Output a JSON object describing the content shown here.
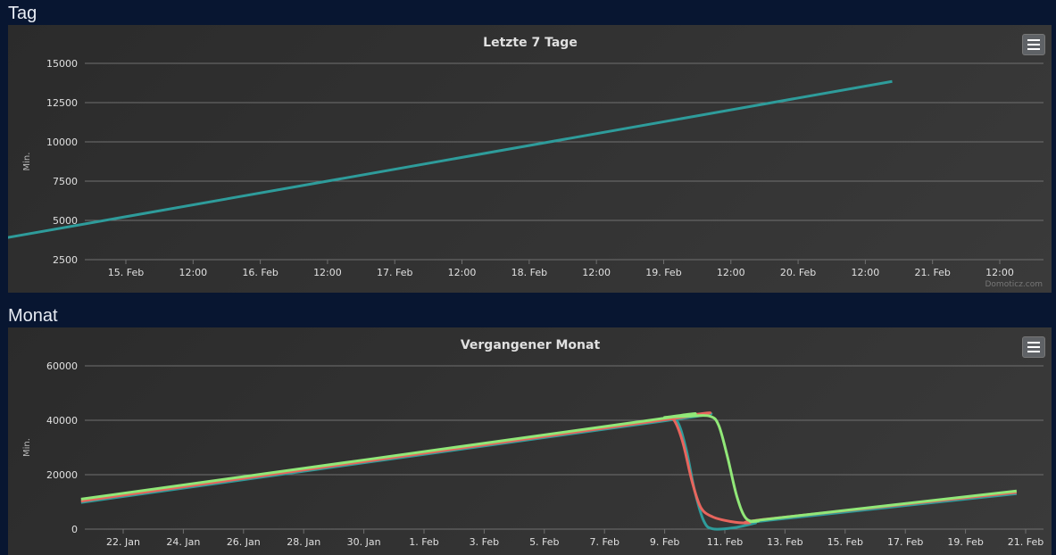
{
  "sections": {
    "day_title": "Tag",
    "month_title": "Monat"
  },
  "credit": "Domoticz.com",
  "colors": {
    "teal": "#2e9c9b",
    "red": "#e8655d",
    "green": "#91e878",
    "grid": "#707070",
    "text": "#e0e0e0"
  },
  "chart_data": [
    {
      "type": "line",
      "title": "Letzte 7 Tage",
      "ylabel": "Min.",
      "ylim": [
        2500,
        15000
      ],
      "yticks": [
        2500,
        5000,
        7500,
        10000,
        12500,
        15000
      ],
      "xticks": [
        "15. Feb",
        "12:00",
        "16. Feb",
        "12:00",
        "17. Feb",
        "12:00",
        "18. Feb",
        "12:00",
        "19. Feb",
        "12:00",
        "20. Feb",
        "12:00",
        "21. Feb",
        "12:00"
      ],
      "x_start": "14.05 Feb",
      "x": [
        14.05,
        20.7
      ],
      "series": [
        {
          "values": [
            3800,
            13850
          ],
          "color": "#2e9c9b"
        }
      ]
    },
    {
      "type": "line",
      "title": "Vergangener Monat",
      "ylabel": "Min.",
      "ylim": [
        0,
        60000
      ],
      "yticks": [
        0,
        20000,
        40000,
        60000
      ],
      "xticks": [
        "22. Jan",
        "24. Jan",
        "26. Jan",
        "28. Jan",
        "30. Jan",
        "1. Feb",
        "3. Feb",
        "5. Feb",
        "7. Feb",
        "9. Feb",
        "11. Feb",
        "13. Feb",
        "15. Feb",
        "17. Feb",
        "19. Feb",
        "21. Feb"
      ],
      "series": [
        {
          "color": "#2e9c9b",
          "points": [
            [
              -1.4,
              9800
            ],
            [
              18.0,
              39800
            ],
            [
              18.4,
              39800
            ],
            [
              18.7,
              30000
            ],
            [
              19.0,
              14000
            ],
            [
              19.3,
              3000
            ],
            [
              19.6,
              100
            ],
            [
              20.3,
              500
            ],
            [
              21.0,
              2200
            ],
            [
              21.5,
              3300
            ],
            [
              29.7,
              13000
            ]
          ]
        },
        {
          "color": "#e8655d",
          "points": [
            [
              -1.4,
              10300
            ],
            [
              18.0,
              40200
            ],
            [
              18.3,
              40200
            ],
            [
              18.6,
              32000
            ],
            [
              18.9,
              18000
            ],
            [
              19.2,
              8000
            ],
            [
              19.6,
              4500
            ],
            [
              20.2,
              2800
            ],
            [
              20.8,
              2300
            ],
            [
              21.5,
              3800
            ],
            [
              29.7,
              13500
            ]
          ]
        },
        {
          "color": "#91e878",
          "points": [
            [
              -1.4,
              11000
            ],
            [
              17.5,
              40000
            ],
            [
              18.0,
              41000
            ],
            [
              18.8,
              41500
            ],
            [
              19.5,
              41500
            ],
            [
              19.8,
              38000
            ],
            [
              20.1,
              26000
            ],
            [
              20.4,
              12000
            ],
            [
              20.7,
              4000
            ],
            [
              21.1,
              3000
            ],
            [
              21.6,
              3900
            ],
            [
              29.7,
              14000
            ]
          ]
        }
      ]
    }
  ]
}
